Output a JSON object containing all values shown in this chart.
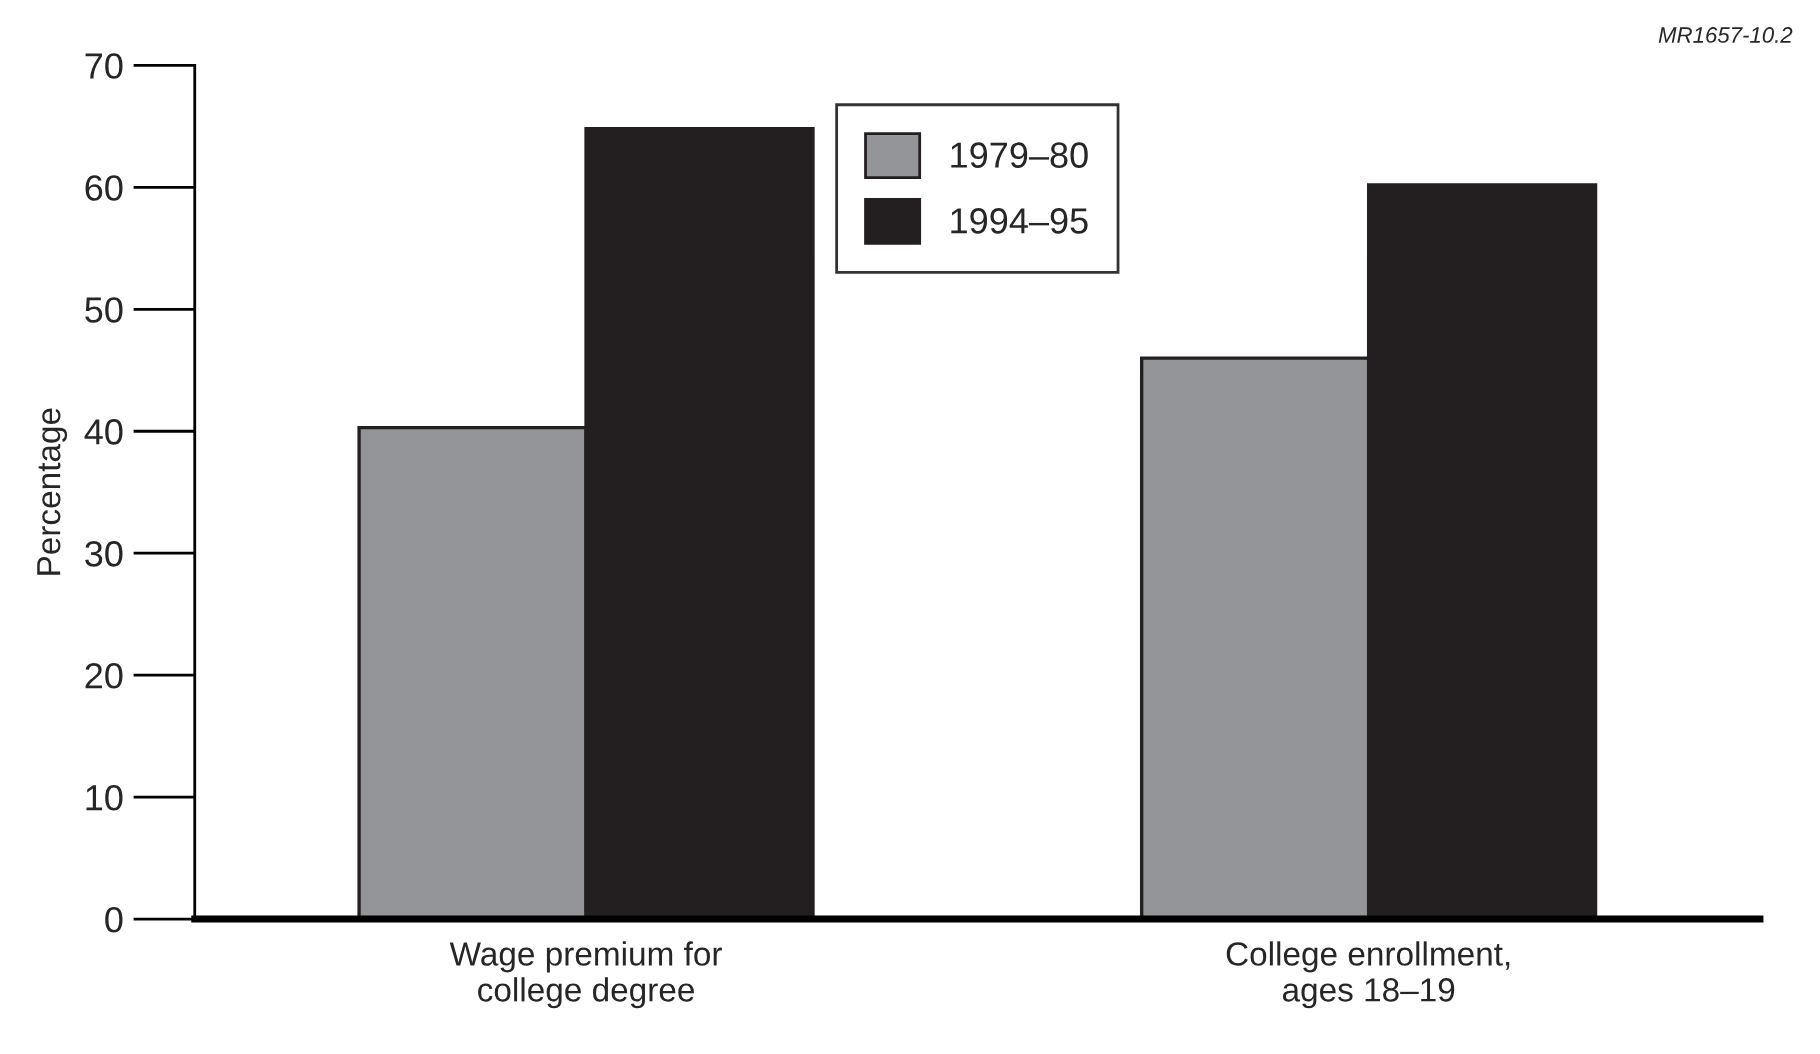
{
  "chart_data": {
    "type": "bar",
    "categories": [
      "Wage premium for\ncollege degree",
      "College enrollment,\nages 18–19"
    ],
    "series": [
      {
        "name": "1979–80",
        "color": "#939598",
        "values": [
          40.3,
          46.0
        ]
      },
      {
        "name": "1994–95",
        "color": "#231f20",
        "values": [
          64.8,
          60.2
        ]
      }
    ],
    "ylabel": "Percentage",
    "ylim": [
      0,
      70
    ],
    "yticks": [
      0,
      10,
      20,
      30,
      40,
      50,
      60,
      70
    ],
    "annotations": [
      "MR1657-10.2"
    ],
    "grid": false,
    "legend": "top"
  }
}
